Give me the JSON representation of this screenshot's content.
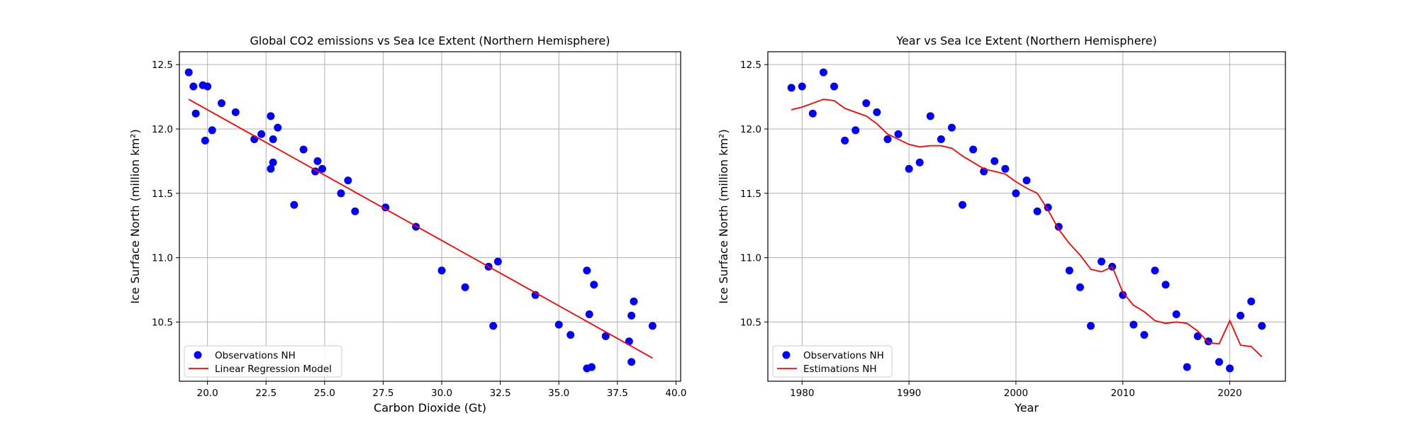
{
  "colors": {
    "points": "#0000ff",
    "line": "#ff0000",
    "grid": "#b0b0b0",
    "frame": "#000000"
  },
  "chart_data": [
    {
      "type": "scatter",
      "title": "Global CO2 emissions vs Sea Ice Extent (Northern Hemisphere)",
      "xlabel": "Carbon Dioxide (Gt)",
      "ylabel": "Ice Surface North (million km²)",
      "xlim": [
        18.8,
        40.2
      ],
      "ylim": [
        10.04,
        12.6
      ],
      "xticks": [
        20.0,
        22.5,
        25.0,
        27.5,
        30.0,
        32.5,
        35.0,
        37.5,
        40.0
      ],
      "xtick_labels": [
        "20.0",
        "22.5",
        "25.0",
        "27.5",
        "30.0",
        "32.5",
        "35.0",
        "37.5",
        "40.0"
      ],
      "yticks": [
        10.5,
        11.0,
        11.5,
        12.0,
        12.5
      ],
      "ytick_labels": [
        "10.5",
        "11.0",
        "11.5",
        "12.0",
        "12.5"
      ],
      "grid": true,
      "legend_position": "lower-left",
      "series": [
        {
          "name": "Observations NH",
          "kind": "scatter",
          "color": "#0000ff",
          "points": [
            [
              19.2,
              12.44
            ],
            [
              19.4,
              12.33
            ],
            [
              19.5,
              12.12
            ],
            [
              19.8,
              12.34
            ],
            [
              20.0,
              12.33
            ],
            [
              19.9,
              11.91
            ],
            [
              20.2,
              11.99
            ],
            [
              20.6,
              12.2
            ],
            [
              21.2,
              12.13
            ],
            [
              22.0,
              11.92
            ],
            [
              22.3,
              11.96
            ],
            [
              22.7,
              12.1
            ],
            [
              22.8,
              11.92
            ],
            [
              23.0,
              12.01
            ],
            [
              22.7,
              11.69
            ],
            [
              22.8,
              11.74
            ],
            [
              23.7,
              11.41
            ],
            [
              24.1,
              11.84
            ],
            [
              24.6,
              11.67
            ],
            [
              24.7,
              11.75
            ],
            [
              24.9,
              11.69
            ],
            [
              25.7,
              11.5
            ],
            [
              26.0,
              11.6
            ],
            [
              26.3,
              11.36
            ],
            [
              27.6,
              11.39
            ],
            [
              28.9,
              11.24
            ],
            [
              30.0,
              10.9
            ],
            [
              31.0,
              10.77
            ],
            [
              32.0,
              10.93
            ],
            [
              32.4,
              10.97
            ],
            [
              32.2,
              10.47
            ],
            [
              34.0,
              10.71
            ],
            [
              35.0,
              10.48
            ],
            [
              35.5,
              10.4
            ],
            [
              36.2,
              10.9
            ],
            [
              36.3,
              10.56
            ],
            [
              36.5,
              10.79
            ],
            [
              36.2,
              10.14
            ],
            [
              36.4,
              10.15
            ],
            [
              37.0,
              10.39
            ],
            [
              38.0,
              10.35
            ],
            [
              38.1,
              10.55
            ],
            [
              38.2,
              10.66
            ],
            [
              38.1,
              10.19
            ],
            [
              39.0,
              10.47
            ]
          ]
        },
        {
          "name": "Linear Regression Model",
          "kind": "line",
          "color": "#ff0000",
          "points": [
            [
              19.2,
              12.23
            ],
            [
              39.0,
              10.22
            ]
          ]
        }
      ]
    },
    {
      "type": "scatter",
      "title": "Year vs Sea Ice Extent (Northern Hemisphere)",
      "xlabel": "Year",
      "ylabel": "Ice Surface North (million km²)",
      "xlim": [
        1976.8,
        2025.2
      ],
      "ylim": [
        10.04,
        12.6
      ],
      "xticks": [
        1980,
        1990,
        2000,
        2010,
        2020
      ],
      "xtick_labels": [
        "1980",
        "1990",
        "2000",
        "2010",
        "2020"
      ],
      "yticks": [
        10.5,
        11.0,
        11.5,
        12.0,
        12.5
      ],
      "ytick_labels": [
        "10.5",
        "11.0",
        "11.5",
        "12.0",
        "12.5"
      ],
      "grid": true,
      "legend_position": "lower-left",
      "series": [
        {
          "name": "Observations NH",
          "kind": "scatter",
          "color": "#0000ff",
          "points": [
            [
              1979,
              12.32
            ],
            [
              1980,
              12.33
            ],
            [
              1981,
              12.12
            ],
            [
              1982,
              12.44
            ],
            [
              1983,
              12.33
            ],
            [
              1984,
              11.91
            ],
            [
              1985,
              11.99
            ],
            [
              1986,
              12.2
            ],
            [
              1987,
              12.13
            ],
            [
              1988,
              11.92
            ],
            [
              1989,
              11.96
            ],
            [
              1990,
              11.69
            ],
            [
              1991,
              11.74
            ],
            [
              1992,
              12.1
            ],
            [
              1993,
              11.92
            ],
            [
              1994,
              12.01
            ],
            [
              1995,
              11.41
            ],
            [
              1996,
              11.84
            ],
            [
              1997,
              11.67
            ],
            [
              1998,
              11.75
            ],
            [
              1999,
              11.69
            ],
            [
              2000,
              11.5
            ],
            [
              2001,
              11.6
            ],
            [
              2002,
              11.36
            ],
            [
              2003,
              11.39
            ],
            [
              2004,
              11.24
            ],
            [
              2005,
              10.9
            ],
            [
              2006,
              10.77
            ],
            [
              2007,
              10.47
            ],
            [
              2008,
              10.97
            ],
            [
              2009,
              10.93
            ],
            [
              2010,
              10.71
            ],
            [
              2011,
              10.48
            ],
            [
              2012,
              10.4
            ],
            [
              2013,
              10.9
            ],
            [
              2014,
              10.79
            ],
            [
              2015,
              10.56
            ],
            [
              2016,
              10.15
            ],
            [
              2017,
              10.39
            ],
            [
              2018,
              10.35
            ],
            [
              2019,
              10.19
            ],
            [
              2020,
              10.14
            ],
            [
              2021,
              10.55
            ],
            [
              2022,
              10.66
            ],
            [
              2023,
              10.47
            ]
          ]
        },
        {
          "name": "Estimations NH",
          "kind": "line",
          "color": "#ff0000",
          "points": [
            [
              1979,
              12.15
            ],
            [
              1980,
              12.17
            ],
            [
              1981,
              12.2
            ],
            [
              1982,
              12.23
            ],
            [
              1983,
              12.22
            ],
            [
              1984,
              12.16
            ],
            [
              1985,
              12.13
            ],
            [
              1986,
              12.1
            ],
            [
              1987,
              12.04
            ],
            [
              1988,
              11.96
            ],
            [
              1989,
              11.92
            ],
            [
              1990,
              11.88
            ],
            [
              1991,
              11.86
            ],
            [
              1992,
              11.87
            ],
            [
              1993,
              11.87
            ],
            [
              1994,
              11.85
            ],
            [
              1995,
              11.79
            ],
            [
              1996,
              11.74
            ],
            [
              1997,
              11.69
            ],
            [
              1998,
              11.67
            ],
            [
              1999,
              11.65
            ],
            [
              2000,
              11.59
            ],
            [
              2001,
              11.54
            ],
            [
              2002,
              11.5
            ],
            [
              2003,
              11.37
            ],
            [
              2004,
              11.22
            ],
            [
              2005,
              11.11
            ],
            [
              2006,
              11.02
            ],
            [
              2007,
              10.91
            ],
            [
              2008,
              10.89
            ],
            [
              2009,
              10.93
            ],
            [
              2010,
              10.73
            ],
            [
              2011,
              10.63
            ],
            [
              2012,
              10.58
            ],
            [
              2013,
              10.51
            ],
            [
              2014,
              10.49
            ],
            [
              2015,
              10.5
            ],
            [
              2016,
              10.49
            ],
            [
              2017,
              10.43
            ],
            [
              2018,
              10.34
            ],
            [
              2019,
              10.33
            ],
            [
              2020,
              10.51
            ],
            [
              2021,
              10.32
            ],
            [
              2022,
              10.31
            ],
            [
              2023,
              10.23
            ]
          ]
        }
      ]
    }
  ]
}
